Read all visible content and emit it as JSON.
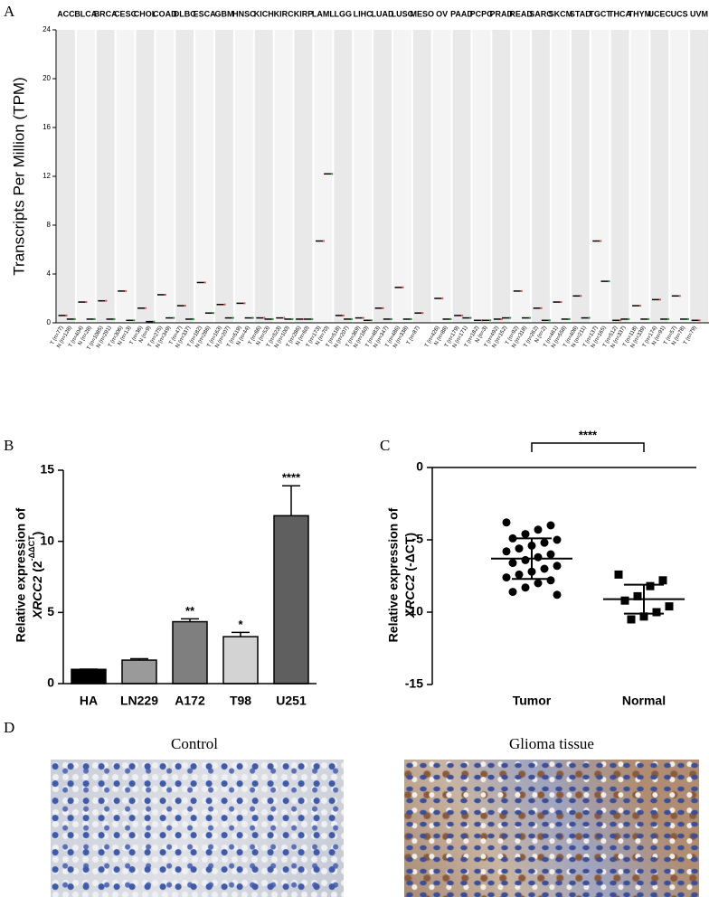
{
  "panel_labels": [
    "A",
    "B",
    "C",
    "D"
  ],
  "images": {
    "left_title": "Control",
    "right_title": "Glioma tissue"
  },
  "chart_data": [
    {
      "type": "dot_median",
      "ylabel": "Transcripts Per Million (TPM)",
      "ylim": [
        0,
        24
      ],
      "yticks": [
        0,
        4,
        8,
        12,
        16,
        20,
        24
      ],
      "tumor_color": "#e8575a",
      "normal_color": "#2a9a3a",
      "median_color": "#000000",
      "groups": [
        {
          "name": "ACC",
          "name_color": "#000000",
          "tumor_label": "T (n=77)",
          "normal_label": "N (n=128)",
          "tumor_median": 0.6,
          "normal_median": 0.3
        },
        {
          "name": "BLCA",
          "name_color": "#e8575a",
          "tumor_label": "T (n=404)",
          "normal_label": "N (n=28)",
          "tumor_median": 1.7,
          "normal_median": 0.3
        },
        {
          "name": "BRCA",
          "name_color": "#000000",
          "tumor_label": "T (n=1085)",
          "normal_label": "N (n=291)",
          "tumor_median": 1.8,
          "normal_median": 0.3
        },
        {
          "name": "CESC",
          "name_color": "#e8575a",
          "tumor_label": "T (n=306)",
          "normal_label": "N (n=13)",
          "tumor_median": 2.6,
          "normal_median": 0.2
        },
        {
          "name": "CHOL",
          "name_color": "#000000",
          "tumor_label": "T (n=36)",
          "normal_label": "N (n=9)",
          "tumor_median": 1.2,
          "normal_median": 0.1
        },
        {
          "name": "COAD",
          "name_color": "#e8575a",
          "tumor_label": "T (n=275)",
          "normal_label": "N (n=349)",
          "tumor_median": 2.3,
          "normal_median": 0.4
        },
        {
          "name": "DLBC",
          "name_color": "#e8575a",
          "tumor_label": "T (n=47)",
          "normal_label": "N (n=337)",
          "tumor_median": 1.4,
          "normal_median": 0.3
        },
        {
          "name": "ESCA",
          "name_color": "#e8575a",
          "tumor_label": "T (n=182)",
          "normal_label": "N (n=286)",
          "tumor_median": 3.3,
          "normal_median": 0.8
        },
        {
          "name": "GBM",
          "name_color": "#e8575a",
          "tumor_label": "T (n=163)",
          "normal_label": "N (n=207)",
          "tumor_median": 1.5,
          "normal_median": 0.4
        },
        {
          "name": "HNSC",
          "name_color": "#000000",
          "tumor_label": "T (n=519)",
          "normal_label": "N (n=44)",
          "tumor_median": 1.6,
          "normal_median": 0.4
        },
        {
          "name": "KICH",
          "name_color": "#000000",
          "tumor_label": "T (n=66)",
          "normal_label": "N (n=53)",
          "tumor_median": 0.4,
          "normal_median": 0.3
        },
        {
          "name": "KIRC",
          "name_color": "#000000",
          "tumor_label": "T (n=523)",
          "normal_label": "N (n=100)",
          "tumor_median": 0.4,
          "normal_median": 0.3
        },
        {
          "name": "KIRP",
          "name_color": "#000000",
          "tumor_label": "T (n=286)",
          "normal_label": "N (n=60)",
          "tumor_median": 0.3,
          "normal_median": 0.3
        },
        {
          "name": "LAML",
          "name_color": "#000000",
          "tumor_label": "T (n=173)",
          "normal_label": "N (n=70)",
          "tumor_median": 6.7,
          "normal_median": 12.2
        },
        {
          "name": "LGG",
          "name_color": "#000000",
          "tumor_label": "T (n=518)",
          "normal_label": "N (n=207)",
          "tumor_median": 0.6,
          "normal_median": 0.3
        },
        {
          "name": "LIHC",
          "name_color": "#000000",
          "tumor_label": "T (n=369)",
          "normal_label": "N (n=160)",
          "tumor_median": 0.4,
          "normal_median": 0.2
        },
        {
          "name": "LUAD",
          "name_color": "#000000",
          "tumor_label": "T (n=483)",
          "normal_label": "N (n=347)",
          "tumor_median": 1.2,
          "normal_median": 0.3
        },
        {
          "name": "LUSC",
          "name_color": "#e8575a",
          "tumor_label": "T (n=486)",
          "normal_label": "N (n=338)",
          "tumor_median": 2.9,
          "normal_median": 0.3
        },
        {
          "name": "MESO",
          "name_color": "#000000",
          "tumor_label": "T (n=87)",
          "tumor_median": 0.8
        },
        {
          "name": "OV",
          "name_color": "#e8575a",
          "tumor_label": "T (n=426)",
          "normal_label": "N (n=88)",
          "tumor_median": 2.0,
          "normal_median": 0.3
        },
        {
          "name": "PAAD",
          "name_color": "#000000",
          "tumor_label": "T (n=179)",
          "normal_label": "N (n=171)",
          "tumor_median": 0.6,
          "normal_median": 0.4
        },
        {
          "name": "PCPG",
          "name_color": "#000000",
          "tumor_label": "T (n=182)",
          "normal_label": "N (n=3)",
          "tumor_median": 0.2,
          "normal_median": 0.2
        },
        {
          "name": "PRAD",
          "name_color": "#000000",
          "tumor_label": "T (n=492)",
          "normal_label": "N (n=152)",
          "tumor_median": 0.3,
          "normal_median": 0.4
        },
        {
          "name": "READ",
          "name_color": "#e8575a",
          "tumor_label": "T (n=92)",
          "normal_label": "N (n=318)",
          "tumor_median": 2.6,
          "normal_median": 0.4
        },
        {
          "name": "SARC",
          "name_color": "#000000",
          "tumor_label": "T (n=262)",
          "normal_label": "N (n=2)",
          "tumor_median": 1.2,
          "normal_median": 0.2
        },
        {
          "name": "SKCM",
          "name_color": "#e8575a",
          "tumor_label": "T (n=461)",
          "normal_label": "N (n=558)",
          "tumor_median": 1.7,
          "normal_median": 0.3
        },
        {
          "name": "STAD",
          "name_color": "#e8575a",
          "tumor_label": "T (n=408)",
          "normal_label": "N (n=211)",
          "tumor_median": 2.2,
          "normal_median": 0.4
        },
        {
          "name": "TGCT",
          "name_color": "#000000",
          "tumor_label": "T (n=137)",
          "normal_label": "N (n=165)",
          "tumor_median": 6.7,
          "normal_median": 3.4
        },
        {
          "name": "THCA",
          "name_color": "#000000",
          "tumor_label": "T (n=512)",
          "normal_label": "N (n=337)",
          "tumor_median": 0.2,
          "normal_median": 0.3
        },
        {
          "name": "THYM",
          "name_color": "#e8575a",
          "tumor_label": "T (n=118)",
          "normal_label": "N (n=339)",
          "tumor_median": 1.4,
          "normal_median": 0.3
        },
        {
          "name": "UCEC",
          "name_color": "#e8575a",
          "tumor_label": "T (n=174)",
          "normal_label": "N (n=91)",
          "tumor_median": 1.9,
          "normal_median": 0.3
        },
        {
          "name": "UCS",
          "name_color": "#e8575a",
          "tumor_label": "T (n=57)",
          "normal_label": "N (n=78)",
          "tumor_median": 2.2,
          "normal_median": 0.3
        },
        {
          "name": "UVM",
          "name_color": "#000000",
          "tumor_label": "T (n=79)",
          "tumor_median": 0.2
        }
      ]
    },
    {
      "type": "bar",
      "ylabel_parts": [
        "Relative expression of",
        "XRCC2",
        "(2",
        "-ΔΔCT",
        ")"
      ],
      "categories": [
        "HA",
        "LN229",
        "A172",
        "T98",
        "U251"
      ],
      "values": [
        1,
        1.65,
        4.35,
        3.3,
        11.8
      ],
      "errors": [
        0.02,
        0.1,
        0.2,
        0.3,
        2.1
      ],
      "colors": [
        "#000000",
        "#9a9a9a",
        "#7f7f7f",
        "#d3d3d3",
        "#5f5f5f"
      ],
      "annotations": [
        null,
        null,
        "**",
        "*",
        "****"
      ],
      "ylim": [
        0,
        15
      ],
      "yticks": [
        0,
        5,
        10,
        15
      ]
    },
    {
      "type": "scatter_mean_sd",
      "ylabel_parts": [
        "Relative expression of",
        "XRCC2",
        "(-ΔCT)"
      ],
      "categories": [
        "Tumor",
        "Normal"
      ],
      "groups": [
        {
          "marker": "circle",
          "values": [
            -3.8,
            -4.0,
            -4.3,
            -4.6,
            -4.9,
            -5.0,
            -5.2,
            -5.4,
            -5.6,
            -5.8,
            -6.0,
            -6.2,
            -6.4,
            -6.6,
            -6.8,
            -7.0,
            -7.2,
            -7.4,
            -7.6,
            -7.8,
            -8.0,
            -8.3,
            -8.6,
            -8.8
          ],
          "mean": -6.3,
          "sd": 1.4
        },
        {
          "marker": "square",
          "values": [
            -7.4,
            -7.8,
            -8.2,
            -8.9,
            -9.2,
            -9.6,
            -10.0,
            -10.3,
            -10.5
          ],
          "mean": -9.1,
          "sd": 1.0
        }
      ],
      "significance": "****",
      "ylim": [
        -15,
        0
      ],
      "yticks": [
        0,
        -5,
        -10,
        -15
      ]
    }
  ]
}
